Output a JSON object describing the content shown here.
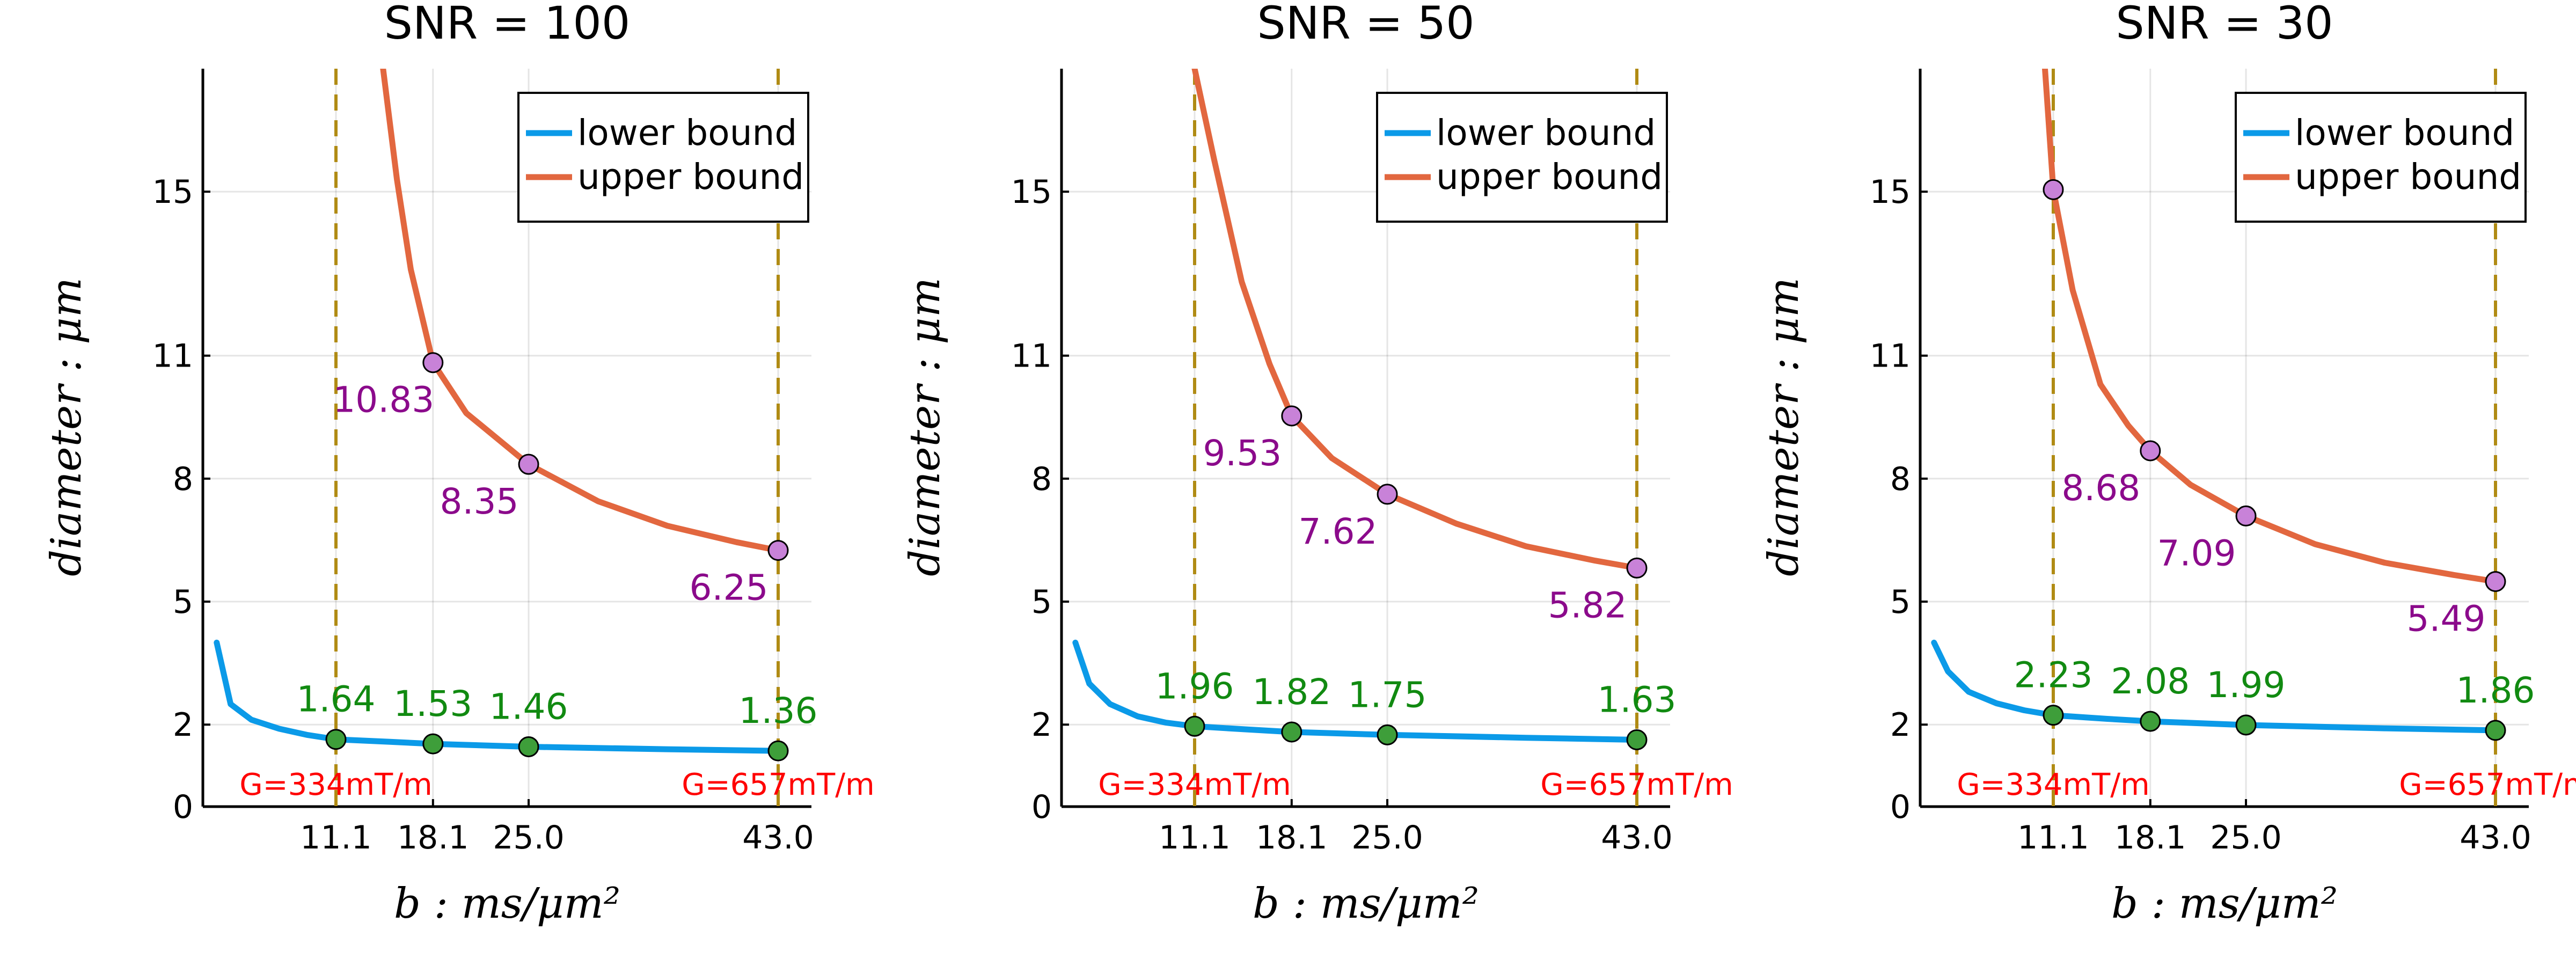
{
  "colors": {
    "lower": "#0b9ae8",
    "upper": "#e2673f",
    "upper_marker": "#c882d8",
    "lower_marker": "#3e9e3a",
    "upper_label": "#8b0a8b",
    "lower_label": "#118a11",
    "vline": "#b08b14",
    "gradient_label": "#ff0000"
  },
  "legend": {
    "lower": "lower bound",
    "upper": "upper bound",
    "placement": "top-right"
  },
  "chart_data": [
    {
      "type": "line",
      "title": "SNR = 100",
      "xlabel": "b : ms/μm²",
      "ylabel": "diameter : μm",
      "ylim": [
        0,
        18
      ],
      "xlim": [
        1.5,
        45.4
      ],
      "x_ticks": [
        "11.1",
        "18.1",
        "25.0",
        "43.0"
      ],
      "y_ticks": [
        "0",
        "2",
        "5",
        "8",
        "11",
        "15"
      ],
      "grid": true,
      "vlines": [
        11.1,
        43.0
      ],
      "gradient_labels": [
        {
          "x": 11.1,
          "text": "G=334mT/m"
        },
        {
          "x": 43.0,
          "text": "G=657mT/m"
        }
      ],
      "series": [
        {
          "name": "lower bound",
          "x": [
            2.5,
            3.5,
            5,
            7,
            9,
            11.1,
            15,
            18.1,
            25.0,
            35,
            43.0
          ],
          "y": [
            4.0,
            2.5,
            2.12,
            1.9,
            1.75,
            1.64,
            1.58,
            1.53,
            1.46,
            1.4,
            1.36
          ]
        },
        {
          "name": "upper bound",
          "x": [
            14.5,
            15.5,
            16.5,
            18.1,
            20.5,
            25.0,
            30,
            35,
            40,
            43.0
          ],
          "y": [
            18.0,
            15.3,
            13.1,
            10.83,
            9.6,
            8.35,
            7.45,
            6.85,
            6.45,
            6.25
          ]
        }
      ],
      "points_upper": [
        {
          "x": 18.1,
          "y": 10.83,
          "label": "10.83"
        },
        {
          "x": 25.0,
          "y": 8.35,
          "label": "8.35"
        },
        {
          "x": 43.0,
          "y": 6.25,
          "label": "6.25"
        }
      ],
      "points_lower": [
        {
          "x": 11.1,
          "y": 1.64,
          "label": "1.64"
        },
        {
          "x": 18.1,
          "y": 1.53,
          "label": "1.53"
        },
        {
          "x": 25.0,
          "y": 1.46,
          "label": "1.46"
        },
        {
          "x": 43.0,
          "y": 1.36,
          "label": "1.36"
        }
      ]
    },
    {
      "type": "line",
      "title": "SNR = 50",
      "xlabel": "b : ms/μm²",
      "ylabel": "diameter : μm",
      "ylim": [
        0,
        18
      ],
      "xlim": [
        1.5,
        45.4
      ],
      "x_ticks": [
        "11.1",
        "18.1",
        "25.0",
        "43.0"
      ],
      "y_ticks": [
        "0",
        "2",
        "5",
        "8",
        "11",
        "15"
      ],
      "grid": true,
      "vlines": [
        11.1,
        43.0
      ],
      "gradient_labels": [
        {
          "x": 11.1,
          "text": "G=334mT/m"
        },
        {
          "x": 43.0,
          "text": "G=657mT/m"
        }
      ],
      "series": [
        {
          "name": "lower bound",
          "x": [
            2.5,
            3.5,
            5,
            7,
            9,
            11.1,
            15,
            18.1,
            25.0,
            35,
            43.0
          ],
          "y": [
            4.0,
            3.0,
            2.5,
            2.2,
            2.05,
            1.96,
            1.88,
            1.82,
            1.75,
            1.68,
            1.63
          ]
        },
        {
          "name": "upper bound",
          "x": [
            11.1,
            12.5,
            14.5,
            16.5,
            18.1,
            21,
            25.0,
            30,
            35,
            40,
            43.0
          ],
          "y": [
            18.0,
            15.8,
            12.8,
            10.8,
            9.53,
            8.5,
            7.62,
            6.9,
            6.35,
            6.0,
            5.82
          ]
        }
      ],
      "points_upper": [
        {
          "x": 18.1,
          "y": 9.53,
          "label": "9.53"
        },
        {
          "x": 25.0,
          "y": 7.62,
          "label": "7.62"
        },
        {
          "x": 43.0,
          "y": 5.82,
          "label": "5.82"
        }
      ],
      "points_lower": [
        {
          "x": 11.1,
          "y": 1.96,
          "label": "1.96"
        },
        {
          "x": 18.1,
          "y": 1.82,
          "label": "1.82"
        },
        {
          "x": 25.0,
          "y": 1.75,
          "label": "1.75"
        },
        {
          "x": 43.0,
          "y": 1.63,
          "label": "1.63"
        }
      ]
    },
    {
      "type": "line",
      "title": "SNR = 30",
      "xlabel": "b : ms/μm²",
      "ylabel": "diameter : μm",
      "ylim": [
        0,
        18
      ],
      "xlim": [
        1.5,
        45.4
      ],
      "x_ticks": [
        "11.1",
        "18.1",
        "25.0",
        "43.0"
      ],
      "y_ticks": [
        "0",
        "2",
        "5",
        "8",
        "11",
        "15"
      ],
      "grid": true,
      "vlines": [
        11.1,
        43.0
      ],
      "gradient_labels": [
        {
          "x": 11.1,
          "text": "G=334mT/m"
        },
        {
          "x": 43.0,
          "text": "G=657mT/m"
        }
      ],
      "series": [
        {
          "name": "lower bound",
          "x": [
            2.5,
            3.5,
            5,
            7,
            9,
            11.1,
            15,
            18.1,
            25.0,
            35,
            43.0
          ],
          "y": [
            4.0,
            3.3,
            2.8,
            2.52,
            2.35,
            2.23,
            2.14,
            2.08,
            1.99,
            1.91,
            1.86
          ]
        },
        {
          "name": "upper bound",
          "x": [
            10.5,
            11.1,
            12.5,
            14.5,
            16.5,
            18.1,
            21,
            25.0,
            30,
            35,
            40,
            43.0
          ],
          "y": [
            18.0,
            15.05,
            12.6,
            10.3,
            9.3,
            8.68,
            7.85,
            7.09,
            6.4,
            5.95,
            5.65,
            5.49
          ]
        }
      ],
      "points_upper": [
        {
          "x": 11.1,
          "y": 15.05,
          "label": ""
        },
        {
          "x": 18.1,
          "y": 8.68,
          "label": "8.68"
        },
        {
          "x": 25.0,
          "y": 7.09,
          "label": "7.09"
        },
        {
          "x": 43.0,
          "y": 5.49,
          "label": "5.49"
        }
      ],
      "points_lower": [
        {
          "x": 11.1,
          "y": 2.23,
          "label": "2.23"
        },
        {
          "x": 18.1,
          "y": 2.08,
          "label": "2.08"
        },
        {
          "x": 25.0,
          "y": 1.99,
          "label": "1.99"
        },
        {
          "x": 43.0,
          "y": 1.86,
          "label": "1.86"
        }
      ]
    }
  ]
}
